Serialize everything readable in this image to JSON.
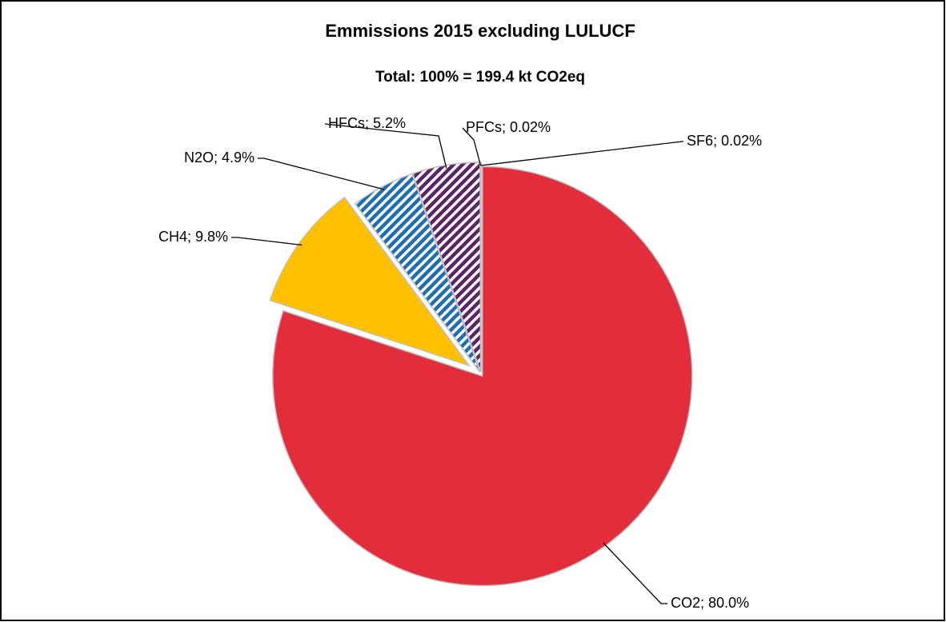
{
  "chart_data": {
    "type": "pie",
    "title": "Emmissions 2015 excluding LULUCF",
    "subtitle": "Total: 100% = 199.4 kt CO2eq",
    "values": [
      80.0,
      9.8,
      4.9,
      5.2,
      0.02,
      0.02
    ],
    "value_labels": [
      "CO2; 80.0%",
      "CH4; 9.8%",
      "N2O; 4.9%",
      "HFCs; 5.2%",
      "PFCs; 0.02%",
      "SF6; 0.02%"
    ],
    "colors": [
      "#e32d3d",
      "#ffc000",
      "#1f6eb4",
      "#5b2565",
      "#5b2565",
      "#7030a0"
    ],
    "hatched": [
      false,
      false,
      true,
      true,
      false,
      false
    ],
    "exploded": [
      false,
      true,
      false,
      false,
      false,
      false
    ]
  }
}
